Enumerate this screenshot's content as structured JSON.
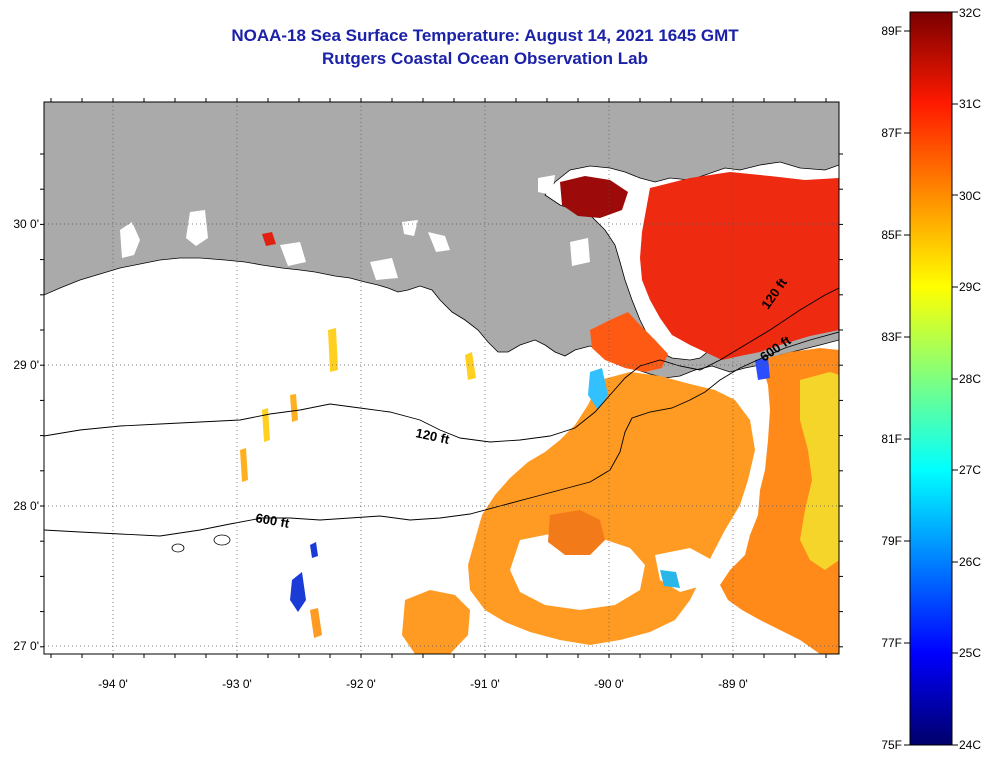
{
  "header": {
    "title": "NOAA-18 Sea Surface Temperature:  August 14, 2021 1645 GMT",
    "subtitle": "Rutgers Coastal Ocean Observation Lab"
  },
  "axes": {
    "longitude_labels": [
      "-94 0'",
      "-93 0'",
      "-92 0'",
      "-91 0'",
      "-90 0'",
      "-89 0'"
    ],
    "latitude_labels": [
      "30 0'",
      "29 0'",
      "28 0'",
      "27 0'"
    ]
  },
  "contours": {
    "label_120": "120 ft",
    "label_600": "600 ft",
    "label_120_east": "120 ft",
    "label_600_east": "600 ft"
  },
  "colorbar": {
    "fahrenheit_labels": [
      "89F",
      "87F",
      "85F",
      "83F",
      "81F",
      "79F",
      "77F",
      "75F"
    ],
    "celsius_labels": [
      "32C",
      "31C",
      "30C",
      "29C",
      "28C",
      "27C",
      "26C",
      "25C",
      "24C"
    ],
    "colors": {
      "c32": "#7a0000",
      "c31": "#ff1a00",
      "c30": "#ff8c00",
      "c29": "#ffff00",
      "c28": "#7fff7f",
      "c27": "#00ffff",
      "c26": "#0080ff",
      "c25": "#0000ff",
      "c24": "#00006a"
    }
  },
  "colors": {
    "land": "#aaaaaa",
    "ocean_no_data": "#ffffff",
    "title_text": "#1b22a8"
  }
}
